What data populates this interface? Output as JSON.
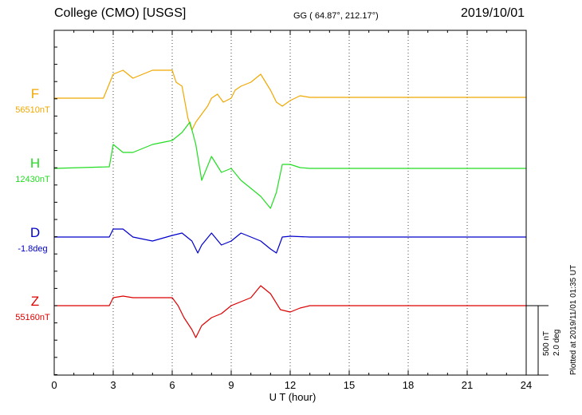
{
  "header": {
    "title": "College (CMO)  [USGS]",
    "coords": "GG ( 64.87°, 212.17°)",
    "date": "2019/10/01"
  },
  "scale_note": {
    "line1": "500 nT",
    "line2": "2.0 deg"
  },
  "plotted_note": "Plotted at 2019/11/01 01:35 UT",
  "chart_data": {
    "type": "line",
    "title": "College (CMO)  [USGS]",
    "xlabel": "U T (hour)",
    "ylabel": "",
    "xlim": [
      0,
      24
    ],
    "x_ticks": [
      "0",
      "3",
      "6",
      "9",
      "12",
      "15",
      "18",
      "21",
      "24"
    ],
    "grid": true,
    "series": [
      {
        "name": "F",
        "baseline": "56510nT",
        "color": "#f0a800",
        "points": [
          [
            0,
            0
          ],
          [
            2.5,
            0
          ],
          [
            3,
            -3
          ],
          [
            3.5,
            -3.5
          ],
          [
            4,
            -2.5
          ],
          [
            5,
            -3.5
          ],
          [
            6,
            -3.5
          ],
          [
            6.2,
            -2
          ],
          [
            6.5,
            -1.5
          ],
          [
            6.8,
            2.5
          ],
          [
            7,
            4
          ],
          [
            7.2,
            3
          ],
          [
            7.5,
            2
          ],
          [
            7.8,
            1
          ],
          [
            8,
            0
          ],
          [
            8.3,
            -0.5
          ],
          [
            8.6,
            0.5
          ],
          [
            9,
            0
          ],
          [
            9.2,
            -1
          ],
          [
            9.5,
            -1.5
          ],
          [
            10,
            -2
          ],
          [
            10.5,
            -3
          ],
          [
            11,
            -1
          ],
          [
            11.3,
            0.5
          ],
          [
            11.6,
            1
          ],
          [
            12,
            0.3
          ],
          [
            12.5,
            -0.3
          ],
          [
            13,
            -0.1
          ],
          [
            24,
            -0.1
          ]
        ]
      },
      {
        "name": "H",
        "baseline": "12430nT",
        "color": "#22dd22",
        "points": [
          [
            0,
            0
          ],
          [
            2.8,
            -0.2
          ],
          [
            3,
            -3
          ],
          [
            3.5,
            -2
          ],
          [
            4,
            -2
          ],
          [
            5,
            -3
          ],
          [
            6,
            -3.5
          ],
          [
            6.5,
            -4.5
          ],
          [
            6.9,
            -5.8
          ],
          [
            7.2,
            -3
          ],
          [
            7.5,
            1.5
          ],
          [
            8,
            -1.5
          ],
          [
            8.5,
            0.5
          ],
          [
            9,
            0
          ],
          [
            9.5,
            1.5
          ],
          [
            10,
            2.5
          ],
          [
            10.5,
            3.5
          ],
          [
            11,
            5
          ],
          [
            11.3,
            3
          ],
          [
            11.6,
            -0.5
          ],
          [
            12,
            -0.5
          ],
          [
            12.5,
            -0.1
          ],
          [
            13,
            0
          ],
          [
            24,
            0
          ]
        ]
      },
      {
        "name": "D",
        "baseline": "-1.8deg",
        "color": "#0000cc",
        "points": [
          [
            0,
            0
          ],
          [
            2.8,
            0
          ],
          [
            3,
            -1
          ],
          [
            3.5,
            -1
          ],
          [
            4,
            0
          ],
          [
            5,
            0.5
          ],
          [
            6,
            -0.2
          ],
          [
            6.5,
            -0.5
          ],
          [
            7,
            0.5
          ],
          [
            7.3,
            2
          ],
          [
            7.5,
            1
          ],
          [
            8,
            -0.5
          ],
          [
            8.5,
            1
          ],
          [
            9,
            0.5
          ],
          [
            9.5,
            -0.5
          ],
          [
            10,
            0
          ],
          [
            10.5,
            0.5
          ],
          [
            11,
            1.5
          ],
          [
            11.3,
            2
          ],
          [
            11.6,
            0
          ],
          [
            12,
            -0.1
          ],
          [
            13,
            0
          ],
          [
            24,
            0
          ]
        ]
      },
      {
        "name": "Z",
        "baseline": "55160nT",
        "color": "#dd0000",
        "points": [
          [
            0,
            0
          ],
          [
            2.8,
            0
          ],
          [
            3,
            -1
          ],
          [
            3.5,
            -1.2
          ],
          [
            4,
            -1
          ],
          [
            5,
            -1
          ],
          [
            6,
            -1
          ],
          [
            6.3,
            0
          ],
          [
            6.6,
            1.5
          ],
          [
            7,
            3
          ],
          [
            7.2,
            4
          ],
          [
            7.5,
            2.5
          ],
          [
            8,
            1.5
          ],
          [
            8.5,
            1
          ],
          [
            9,
            0
          ],
          [
            9.5,
            -0.5
          ],
          [
            10,
            -1
          ],
          [
            10.5,
            -2.5
          ],
          [
            11,
            -1.5
          ],
          [
            11.5,
            0.5
          ],
          [
            12,
            0.8
          ],
          [
            12.5,
            0.3
          ],
          [
            13,
            0
          ],
          [
            24,
            0
          ]
        ]
      }
    ]
  }
}
